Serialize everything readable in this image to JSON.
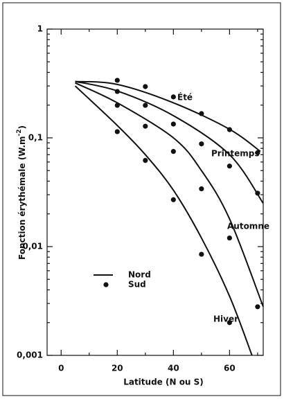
{
  "chart_data": {
    "type": "line",
    "ylabel": [
      "Fonction érythémale (W.m",
      "-2",
      ")"
    ],
    "xlabel": "Latitude (N ou S)",
    "legend": [
      "Nord",
      "Sud"
    ],
    "color": "#111111",
    "log_y": true,
    "xlim": [
      -5,
      72
    ],
    "xticks": [
      0,
      20,
      40,
      60
    ],
    "xminorticks": [
      10,
      30,
      50,
      70
    ],
    "ylim": [
      0.001,
      1
    ],
    "yticks": [
      {
        "value": 0.001,
        "label": "0,001"
      },
      {
        "value": 0.01,
        "label": "0,01"
      },
      {
        "value": 0.1,
        "label": "0,1"
      },
      1
    ],
    "yminorticks": [
      0.002,
      0.003,
      0.004,
      0.005,
      0.006,
      0.007,
      0.008,
      0.009,
      0.02,
      0.03,
      0.04,
      0.05,
      0.06,
      0.07,
      0.08,
      0.09,
      0.2,
      0.3,
      0.4,
      0.5,
      0.6,
      0.7,
      0.8,
      0.9
    ],
    "series": [
      {
        "name": "Été",
        "nord": {
          "x": [
            5,
            20,
            40,
            60,
            71
          ],
          "values": [
            0.33,
            0.31,
            0.21,
            0.12,
            0.075
          ]
        },
        "sud": {
          "x": [
            20,
            30,
            40,
            50,
            60,
            70
          ],
          "values": [
            0.338,
            0.296,
            0.238,
            0.167,
            0.119,
            0.073
          ]
        }
      },
      {
        "name": "Printemps",
        "nord": {
          "x": [
            5,
            20,
            40,
            60,
            72
          ],
          "values": [
            0.33,
            0.27,
            0.16,
            0.07,
            0.025
          ]
        },
        "sud": {
          "x": [
            20,
            30,
            40,
            50,
            60,
            70
          ],
          "values": [
            0.267,
            0.199,
            0.134,
            0.088,
            0.055,
            0.031
          ]
        }
      },
      {
        "name": "Automne",
        "nord": {
          "x": [
            5,
            20,
            40,
            50,
            60,
            72
          ],
          "values": [
            0.32,
            0.21,
            0.1,
            0.05,
            0.018,
            0.0028
          ]
        },
        "sud": {
          "x": [
            20,
            30,
            40,
            50,
            60,
            70
          ],
          "values": [
            0.199,
            0.128,
            0.075,
            0.034,
            0.012,
            0.0028
          ]
        }
      },
      {
        "name": "Hiver",
        "nord": {
          "x": [
            5,
            20,
            30,
            40,
            50,
            60,
            68
          ],
          "values": [
            0.3,
            0.13,
            0.07,
            0.033,
            0.012,
            0.0035,
            0.001
          ]
        },
        "sud": {
          "x": [
            20,
            30,
            40,
            50,
            60
          ],
          "values": [
            0.114,
            0.062,
            0.027,
            0.0085,
            0.002
          ]
        }
      }
    ]
  }
}
